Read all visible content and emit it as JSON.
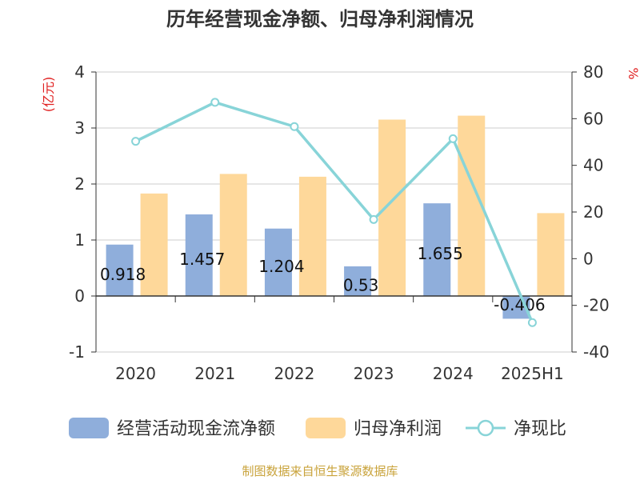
{
  "chart_data": {
    "type": "bar",
    "title": "历年经营现金净额、归母净利润情况",
    "categories": [
      "2020",
      "2021",
      "2022",
      "2023",
      "2024",
      "2025H1"
    ],
    "left_axis": {
      "unit": "(亿元)",
      "ylim": [
        -1,
        4
      ],
      "ticks": [
        "-1",
        "0",
        "1",
        "2",
        "3",
        "4"
      ]
    },
    "right_axis": {
      "unit": "%",
      "ylim": [
        -40,
        80
      ],
      "ticks": [
        "-40",
        "-20",
        "0",
        "20",
        "40",
        "60",
        "80"
      ]
    },
    "series": [
      {
        "name": "经营活动现金流净额",
        "type": "bar",
        "axis": "left",
        "color": "#8faedb",
        "values": [
          0.918,
          1.457,
          1.204,
          0.53,
          1.655,
          -0.406
        ],
        "labels": [
          "0.918",
          "1.457",
          "1.204",
          "0.53",
          "1.655",
          "-0.406"
        ]
      },
      {
        "name": "归母净利润",
        "type": "bar",
        "axis": "left",
        "color": "#fed89a",
        "values": [
          1.83,
          2.18,
          2.13,
          3.15,
          3.22,
          1.48
        ]
      },
      {
        "name": "净现比",
        "type": "line",
        "axis": "right",
        "color": "#88d4d8",
        "values": [
          50.3,
          67.0,
          56.6,
          16.8,
          51.4,
          -27.4
        ]
      }
    ],
    "grid": true,
    "legend_position": "bottom"
  },
  "source": "制图数据来自恒生聚源数据库"
}
